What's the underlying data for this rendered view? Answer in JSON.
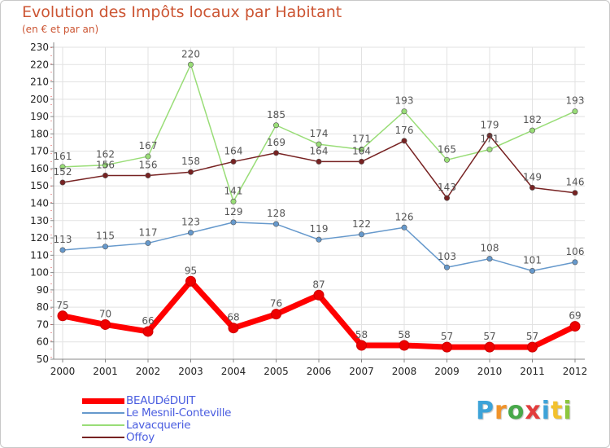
{
  "title": "Evolution des Impôts locaux par Habitant",
  "subtitle": "(en € et par an)",
  "logo": {
    "text": "Proxiti",
    "letters": [
      {
        "ch": "P",
        "color": "#3da3d8"
      },
      {
        "ch": "r",
        "color": "#f0932a"
      },
      {
        "ch": "o",
        "color": "#48a84a"
      },
      {
        "ch": "x",
        "color": "#e23c3c"
      },
      {
        "ch": "i",
        "color": "#3da3d8"
      },
      {
        "ch": "t",
        "color": "#f2c12e"
      },
      {
        "ch": "i",
        "color": "#8cc63f"
      }
    ]
  },
  "chart_data": {
    "type": "line",
    "x": [
      2000,
      2001,
      2002,
      2003,
      2004,
      2005,
      2006,
      2007,
      2008,
      2009,
      2010,
      2011,
      2012
    ],
    "ylim": [
      50,
      230
    ],
    "ytick_step": 10,
    "grid": true,
    "legend_position": "bottom-left",
    "series": [
      {
        "name": "BEAUDéDUIT",
        "color": "#ff0000",
        "values": [
          75,
          70,
          66,
          95,
          68,
          76,
          87,
          58,
          58,
          57,
          57,
          57,
          69
        ]
      },
      {
        "name": "Le Mesnil-Conteville",
        "color": "#6699cc",
        "values": [
          113,
          115,
          117,
          123,
          129,
          128,
          119,
          122,
          126,
          103,
          108,
          101,
          106
        ]
      },
      {
        "name": "Lavacquerie",
        "color": "#99dd77",
        "values": [
          161,
          162,
          167,
          220,
          141,
          185,
          174,
          171,
          193,
          165,
          171,
          182,
          193
        ]
      },
      {
        "name": "Offoy",
        "color": "#772222",
        "values": [
          152,
          156,
          156,
          158,
          164,
          169,
          164,
          164,
          176,
          143,
          179,
          149,
          146
        ]
      }
    ]
  }
}
